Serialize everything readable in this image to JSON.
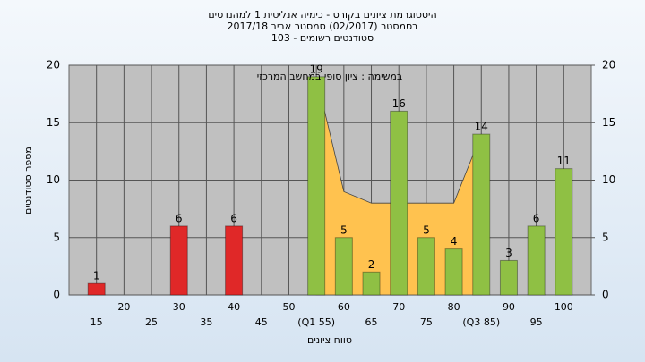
{
  "chart_data": {
    "type": "bar",
    "title": "היסטוגרמת ציונים בקורס - כימיה אנליטית 1 למהנדסים",
    "subtitle": "בסמסטר  (02/2017)  סמסטר אביב 2017/18",
    "subtitle2": "סטודנטים רשומים - 103",
    "annotation": "במשימה : ציון סופי במחשב המרכזי",
    "x_label": "טווח ציונים",
    "y_label": "מספר סטודנטים",
    "categories": [
      "15",
      "20",
      "25",
      "30",
      "35",
      "40",
      "45",
      "50",
      "(Q1 55)",
      "60",
      "65",
      "70",
      "75",
      "80",
      "(Q3 85)",
      "90",
      "95",
      "100"
    ],
    "values": [
      1,
      0,
      0,
      6,
      0,
      6,
      0,
      0,
      19,
      5,
      2,
      16,
      5,
      4,
      14,
      3,
      6,
      11
    ],
    "colors": [
      "#e02828",
      "#e02828",
      "#e02828",
      "#e02828",
      "#e02828",
      "#e02828",
      "#e02828",
      "#e02828",
      "#8fc044",
      "#8fc044",
      "#8fc044",
      "#8fc044",
      "#8fc044",
      "#8fc044",
      "#8fc044",
      "#8fc044",
      "#8fc044",
      "#8fc044"
    ],
    "area": {
      "color": "#ffc24f",
      "values": [
        null,
        null,
        null,
        null,
        null,
        null,
        null,
        null,
        19,
        9,
        8,
        8,
        8,
        8,
        14,
        null,
        null,
        null
      ]
    },
    "ylim": [
      0,
      20
    ],
    "yticks": [
      0,
      5,
      10,
      15,
      20
    ],
    "y2lim": [
      0,
      20
    ],
    "y2ticks": [
      0,
      5,
      10,
      15,
      20
    ],
    "grid": true
  }
}
